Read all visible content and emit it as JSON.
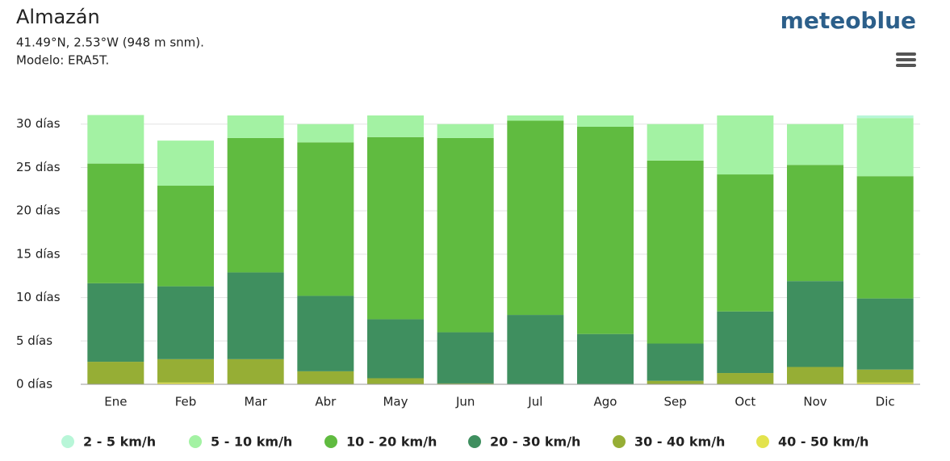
{
  "chart_data": {
    "type": "stacked-bar",
    "title": "Almazán",
    "subtitle": "41.49°N, 2.53°W (948 m snm).",
    "model": "Modelo: ERA5T.",
    "brand": "meteoblue",
    "categories": [
      "Ene",
      "Feb",
      "Mar",
      "Abr",
      "May",
      "Jun",
      "Jul",
      "Ago",
      "Sep",
      "Oct",
      "Nov",
      "Dic"
    ],
    "series": [
      {
        "name": "40 - 50 km/h",
        "color": "#e3e34d",
        "values": [
          0,
          0.2,
          0,
          0,
          0,
          0,
          0,
          0,
          0,
          0,
          0,
          0.2
        ]
      },
      {
        "name": "30 - 40 km/h",
        "color": "#96ae35",
        "values": [
          2.6,
          2.7,
          2.9,
          1.5,
          0.7,
          0.1,
          0,
          0,
          0.4,
          1.3,
          2.0,
          1.5
        ]
      },
      {
        "name": "20 - 30 km/h",
        "color": "#3f8f5f",
        "values": [
          9.05,
          8.4,
          10.0,
          8.7,
          6.8,
          5.9,
          8.0,
          5.8,
          4.3,
          7.1,
          9.9,
          8.2
        ]
      },
      {
        "name": "10 - 20 km/h",
        "color": "#60bb40",
        "values": [
          13.8,
          11.6,
          15.5,
          17.7,
          21.0,
          22.4,
          22.4,
          23.9,
          21.1,
          15.8,
          13.4,
          14.1
        ]
      },
      {
        "name": "5 - 10 km/h",
        "color": "#a3f2a3",
        "values": [
          5.6,
          5.2,
          2.6,
          2.1,
          2.5,
          1.6,
          0.6,
          1.3,
          4.2,
          6.8,
          4.7,
          6.7
        ]
      },
      {
        "name": "2 - 5 km/h",
        "color": "#b8f6d8",
        "values": [
          0,
          0,
          0,
          0,
          0,
          0,
          0,
          0,
          0,
          0,
          0,
          0.3
        ]
      }
    ],
    "ylim": [
      0,
      31
    ],
    "yticks": [
      {
        "value": 0,
        "label": "0 días"
      },
      {
        "value": 5,
        "label": "5 días"
      },
      {
        "value": 10,
        "label": "10 días"
      },
      {
        "value": 15,
        "label": "15 días"
      },
      {
        "value": 20,
        "label": "20 días"
      },
      {
        "value": 25,
        "label": "25 días"
      },
      {
        "value": 30,
        "label": "30 días"
      }
    ],
    "grid": true
  }
}
